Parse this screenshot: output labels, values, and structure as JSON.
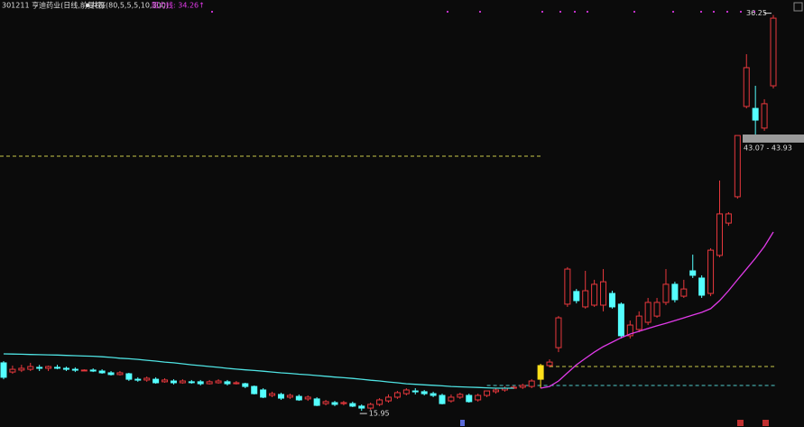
{
  "chart_data": {
    "type": "candlestick",
    "title": "301211 亨迪药业(日线,前复权)",
    "indicator": "共振(80,5,5,5,10,300)",
    "resistance": "阻力线: 34.26↑",
    "up_color": "#e8383d",
    "down_color": "#54ffff",
    "highlight_color": "#ffe11a",
    "highlight": 60,
    "ylim": [
      15.12,
      37.02
    ],
    "open": [
      18.41,
      17.94,
      18.04,
      18.08,
      18.18,
      18.13,
      18.18,
      18.13,
      18.08,
      18.04,
      18.04,
      17.99,
      17.9,
      17.81,
      17.85,
      17.57,
      17.53,
      17.57,
      17.44,
      17.48,
      17.39,
      17.44,
      17.44,
      17.34,
      17.39,
      17.44,
      17.34,
      17.34,
      17.2,
      17.02,
      16.74,
      16.79,
      16.65,
      16.69,
      16.56,
      16.56,
      16.32,
      16.37,
      16.32,
      16.32,
      16.19,
      16.09,
      16.28,
      16.46,
      16.65,
      16.83,
      16.97,
      16.93,
      16.83,
      16.74,
      16.46,
      16.65,
      16.74,
      16.51,
      16.74,
      16.93,
      17.02,
      17.11,
      17.16,
      17.2,
      17.57,
      18.27,
      19.19,
      21.42,
      22.07,
      21.28,
      21.37,
      21.37,
      21.97,
      21.42,
      19.8,
      20.12,
      20.49,
      20.81,
      21.51,
      22.44,
      21.83,
      23.13,
      22.76,
      21.97,
      23.92,
      25.58,
      26.93,
      31.56,
      31.46,
      30.45,
      32.62
    ],
    "high": [
      18.5,
      18.27,
      18.31,
      18.41,
      18.31,
      18.27,
      18.31,
      18.22,
      18.18,
      18.08,
      18.13,
      18.08,
      17.99,
      17.99,
      17.9,
      17.67,
      17.71,
      17.67,
      17.62,
      17.57,
      17.57,
      17.53,
      17.53,
      17.53,
      17.57,
      17.53,
      17.48,
      17.39,
      17.25,
      17.11,
      16.93,
      16.88,
      16.83,
      16.79,
      16.74,
      16.65,
      16.51,
      16.46,
      16.46,
      16.42,
      16.28,
      16.37,
      16.6,
      16.79,
      16.97,
      17.11,
      17.11,
      17.02,
      16.93,
      16.83,
      16.79,
      16.88,
      16.83,
      16.83,
      16.97,
      17.11,
      17.2,
      17.25,
      17.34,
      17.57,
      18.36,
      18.59,
      20.81,
      23.32,
      22.2,
      23.13,
      22.67,
      23.22,
      22.11,
      21.51,
      20.58,
      21.05,
      21.74,
      21.74,
      23.22,
      22.57,
      22.67,
      23.96,
      22.9,
      24.29,
      27.76,
      26.14,
      30.07,
      34.24,
      32.62,
      31.93,
      36.25
    ],
    "low": [
      17.57,
      17.85,
      17.94,
      17.99,
      17.99,
      17.99,
      18.08,
      17.99,
      17.94,
      17.99,
      17.94,
      17.85,
      17.76,
      17.76,
      17.48,
      17.44,
      17.44,
      17.34,
      17.39,
      17.3,
      17.34,
      17.34,
      17.25,
      17.3,
      17.34,
      17.25,
      17.3,
      17.11,
      16.79,
      16.6,
      16.65,
      16.51,
      16.56,
      16.46,
      16.46,
      16.19,
      16.23,
      16.19,
      16.23,
      16.14,
      15.95,
      16.0,
      16.19,
      16.37,
      16.56,
      16.74,
      16.79,
      16.74,
      16.65,
      16.28,
      16.37,
      16.56,
      16.37,
      16.42,
      16.65,
      16.83,
      16.93,
      17.07,
      17.07,
      17.11,
      17.11,
      18.18,
      18.96,
      21.28,
      21.46,
      21.19,
      21.28,
      21.05,
      21.19,
      19.66,
      19.66,
      19.98,
      20.35,
      20.72,
      21.37,
      21.51,
      21.74,
      22.76,
      21.74,
      21.83,
      23.82,
      25.44,
      26.83,
      31.46,
      30.07,
      30.31,
      32.48
    ],
    "close": [
      17.67,
      18.08,
      18.13,
      18.22,
      18.13,
      18.22,
      18.15,
      18.08,
      18.04,
      18.04,
      17.99,
      17.9,
      17.81,
      17.9,
      17.57,
      17.53,
      17.62,
      17.39,
      17.53,
      17.39,
      17.48,
      17.41,
      17.34,
      17.44,
      17.48,
      17.34,
      17.39,
      17.2,
      16.83,
      16.65,
      16.83,
      16.6,
      16.74,
      16.51,
      16.65,
      16.23,
      16.42,
      16.28,
      16.37,
      16.19,
      16.09,
      16.28,
      16.51,
      16.65,
      16.88,
      17.02,
      16.93,
      16.83,
      16.74,
      16.32,
      16.65,
      16.79,
      16.42,
      16.74,
      16.97,
      17.02,
      17.11,
      17.16,
      17.25,
      17.48,
      18.27,
      18.45,
      20.72,
      23.22,
      21.6,
      22.11,
      22.44,
      22.57,
      21.28,
      19.8,
      20.35,
      20.81,
      21.51,
      21.51,
      22.44,
      21.65,
      22.2,
      22.9,
      21.88,
      24.19,
      26.05,
      26.05,
      30.07,
      33.55,
      30.86,
      31.7,
      36.09
    ],
    "lines": [
      {
        "color": "#4fe3e3",
        "values": [
          18.87,
          18.86,
          18.85,
          18.84,
          18.83,
          18.82,
          18.81,
          18.79,
          18.78,
          18.76,
          18.75,
          18.72,
          18.69,
          18.65,
          18.62,
          18.59,
          18.54,
          18.5,
          18.45,
          18.41,
          18.36,
          18.31,
          18.27,
          18.22,
          18.18,
          18.13,
          18.09,
          18.05,
          18.02,
          17.98,
          17.94,
          17.9,
          17.87,
          17.83,
          17.8,
          17.76,
          17.72,
          17.68,
          17.65,
          17.61,
          17.57,
          17.52,
          17.48,
          17.43,
          17.39,
          17.34,
          17.31,
          17.28,
          17.26,
          17.23,
          17.2,
          17.18,
          17.16,
          17.15,
          17.13,
          17.11,
          17.11,
          17.11,
          null,
          null,
          null,
          null,
          null,
          null,
          null,
          null,
          null,
          null,
          null,
          null,
          null,
          null,
          null,
          null,
          null,
          null,
          null,
          null,
          null,
          null,
          null,
          null,
          null,
          null,
          null,
          null,
          null
        ]
      },
      {
        "color": "#e03ae8",
        "values": [
          null,
          null,
          null,
          null,
          null,
          null,
          null,
          null,
          null,
          null,
          null,
          null,
          null,
          null,
          null,
          null,
          null,
          null,
          null,
          null,
          null,
          null,
          null,
          null,
          null,
          null,
          null,
          null,
          null,
          null,
          null,
          null,
          null,
          null,
          null,
          null,
          null,
          null,
          null,
          null,
          null,
          null,
          null,
          null,
          null,
          null,
          null,
          null,
          null,
          null,
          null,
          null,
          null,
          null,
          null,
          null,
          null,
          null,
          null,
          null,
          17.11,
          17.2,
          17.48,
          17.9,
          18.31,
          18.64,
          18.96,
          19.24,
          19.47,
          19.7,
          19.89,
          20.03,
          20.17,
          20.31,
          20.44,
          20.58,
          20.72,
          20.86,
          21.0,
          21.19,
          21.6,
          22.11,
          22.67,
          23.22,
          23.78,
          24.38,
          25.12
        ]
      }
    ],
    "levels": [
      {
        "value": 29.01,
        "color": "#c8c84a",
        "from": 0,
        "to": 60
      },
      {
        "value": 18.22,
        "color": "#c8c84a",
        "from": 61,
        "to": 86
      },
      {
        "value": 17.25,
        "color": "#4fc8c8",
        "from": 54,
        "to": 86
      }
    ],
    "high_label": "36.25",
    "low_label": "15.95",
    "range_label": "43.07 - 43.93"
  }
}
